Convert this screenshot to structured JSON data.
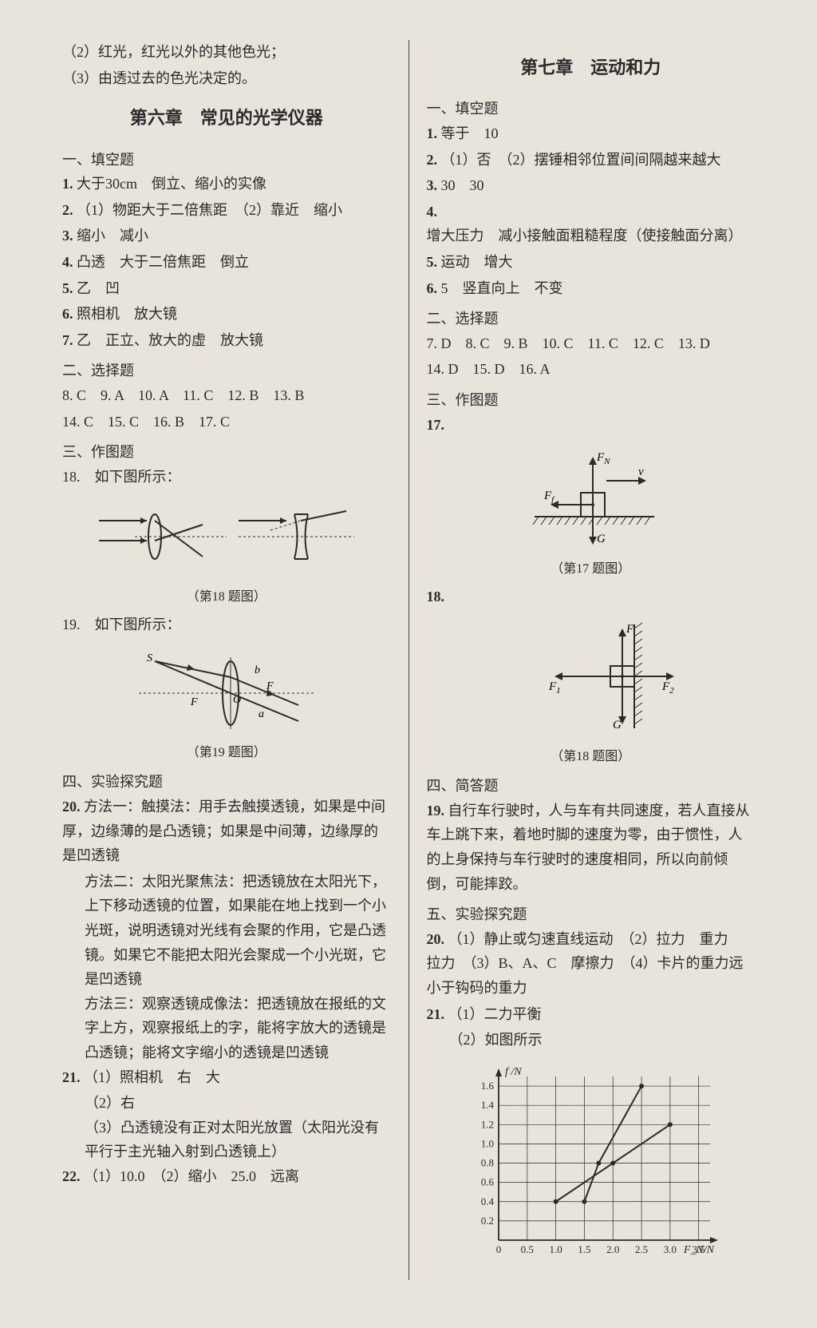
{
  "left": {
    "preamble": [
      "（2）红光，红光以外的其他色光；",
      "（3）由透过去的色光决定的。"
    ],
    "chapter_title": "第六章　常见的光学仪器",
    "sec1_head": "一、填空题",
    "sec1": [
      {
        "n": "1.",
        "t": "大于30cm　倒立、缩小的实像"
      },
      {
        "n": "2.",
        "t": "（1）物距大于二倍焦距　（2）靠近　缩小"
      },
      {
        "n": "3.",
        "t": "缩小　减小"
      },
      {
        "n": "4.",
        "t": "凸透　大于二倍焦距　倒立"
      },
      {
        "n": "5.",
        "t": "乙　凹"
      },
      {
        "n": "6.",
        "t": "照相机　放大镜"
      },
      {
        "n": "7.",
        "t": "乙　正立、放大的虚　放大镜"
      }
    ],
    "sec2_head": "二、选择题",
    "sec2_line1": "8. C　9. A　10. A　11. C　12. B　13. B",
    "sec2_line2": "14. C　15. C　16. B　17. C",
    "sec3_head": "三、作图题",
    "q18_label": "18.　如下图所示：",
    "fig18_caption": "（第18 题图）",
    "q19_label": "19.　如下图所示：",
    "fig19_caption": "（第19 题图）",
    "sec4_head": "四、实验探究题",
    "q20_n": "20.",
    "q20_p1": "方法一：触摸法：用手去触摸透镜，如果是中间厚，边缘薄的是凸透镜；如果是中间薄，边缘厚的是凹透镜",
    "q20_p2": "方法二：太阳光聚焦法：把透镜放在太阳光下，上下移动透镜的位置，如果能在地上找到一个小光斑，说明透镜对光线有会聚的作用，它是凸透镜。如果它不能把太阳光会聚成一个小光斑，它是凹透镜",
    "q20_p3": "方法三：观察透镜成像法：把透镜放在报纸的文字上方，观察报纸上的字，能将字放大的透镜是凸透镜；能将文字缩小的透镜是凹透镜",
    "q21_n": "21.",
    "q21_a": "（1）照相机　右　大",
    "q21_b": "（2）右",
    "q21_c": "（3）凸透镜没有正对太阳光放置（太阳光没有平行于主光轴入射到凸透镜上）",
    "q22_n": "22.",
    "q22_t": "（1）10.0　（2）缩小　25.0　远离"
  },
  "right": {
    "chapter_title": "第七章　运动和力",
    "sec1_head": "一、填空题",
    "sec1": [
      {
        "n": "1.",
        "t": "等于　10"
      },
      {
        "n": "2.",
        "t": "（1）否　（2）摆锤相邻位置间间隔越来越大"
      },
      {
        "n": "3.",
        "t": "30　30"
      },
      {
        "n": "4.",
        "t": "增大压力　减小接触面粗糙程度（使接触面分离）"
      },
      {
        "n": "5.",
        "t": "运动　增大"
      },
      {
        "n": "6.",
        "t": "5　竖直向上　不变"
      }
    ],
    "sec2_head": "二、选择题",
    "sec2_line1": "7. D　8. C　9. B　10. C　11. C　12. C　13. D",
    "sec2_line2": "14. D　15. D　16. A",
    "sec3_head": "三、作图题",
    "q17_n": "17.",
    "fig17_caption": "（第17 题图）",
    "fig17_labels": {
      "fn": "F_N",
      "ff": "F_f",
      "g": "G",
      "v": "v"
    },
    "q18_n": "18.",
    "fig18_caption": "（第18 题图）",
    "fig18_labels": {
      "f": "F",
      "f1": "F₁",
      "f2": "F₂",
      "g": "G"
    },
    "sec4_head": "四、简答题",
    "q19_n": "19.",
    "q19_t": "自行车行驶时，人与车有共同速度，若人直接从车上跳下来，着地时脚的速度为零，由于惯性，人的上身保持与车行驶时的速度相同，所以向前倾倒，可能摔跤。",
    "sec5_head": "五、实验探究题",
    "q20_n": "20.",
    "q20_t": "（1）静止或匀速直线运动　（2）拉力　重力　拉力　（3）B、A、C　摩擦力　（4）卡片的重力远小于钩码的重力",
    "q21_n": "21.",
    "q21_a": "（1）二力平衡",
    "q21_b": "（2）如图所示",
    "chart": {
      "type": "line",
      "x_label": "F_N/N",
      "y_label": "f /N",
      "x_ticks": [
        0,
        0.5,
        1.0,
        1.5,
        2.0,
        2.5,
        3.0,
        3.5
      ],
      "y_ticks": [
        0,
        0.2,
        0.4,
        0.6,
        0.8,
        1.0,
        1.2,
        1.4,
        1.6
      ],
      "xlim": [
        0,
        3.7
      ],
      "ylim": [
        0,
        1.7
      ],
      "grid_color": "#2a2a2a",
      "background_color": "#e8e4dc",
      "line_color": "#2a2a2a",
      "line_width": 2,
      "series": [
        {
          "points": [
            [
              1.0,
              0.4
            ],
            [
              2.0,
              0.8
            ],
            [
              3.0,
              1.2
            ]
          ]
        },
        {
          "points": [
            [
              1.5,
              0.4
            ],
            [
              1.75,
              0.8
            ],
            [
              2.5,
              1.6
            ]
          ]
        }
      ],
      "markers": [
        [
          1.0,
          0.4
        ],
        [
          2.0,
          0.8
        ],
        [
          3.0,
          1.2
        ],
        [
          1.5,
          0.4
        ],
        [
          1.75,
          0.8
        ],
        [
          2.5,
          1.6
        ]
      ]
    }
  }
}
